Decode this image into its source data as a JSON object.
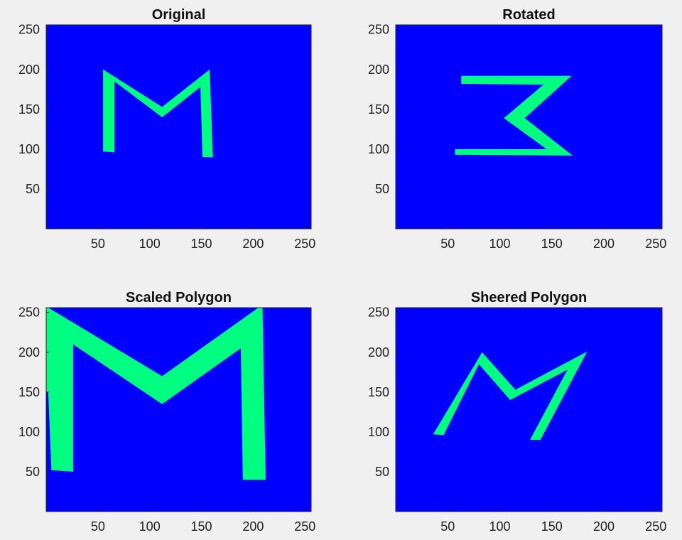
{
  "colors": {
    "figure_background": "#f0f0f0",
    "axes_background": "#0000ff",
    "shape_fill": "#00ff80",
    "axes_edge": "#262626"
  },
  "chart_data": [
    {
      "type": "area",
      "title": "Original",
      "xlim": [
        0,
        256
      ],
      "ylim": [
        0,
        256
      ],
      "xticks": [
        50,
        100,
        150,
        200,
        250
      ],
      "yticks": [
        50,
        100,
        150,
        200,
        250
      ],
      "grid": false,
      "polygon": [
        [
          55,
          200
        ],
        [
          112,
          153
        ],
        [
          158,
          200
        ],
        [
          161,
          90
        ],
        [
          151,
          90
        ],
        [
          149,
          178
        ],
        [
          112,
          140
        ],
        [
          66,
          185
        ],
        [
          66,
          96
        ],
        [
          55,
          97
        ]
      ]
    },
    {
      "type": "area",
      "title": "Rotated",
      "xlim": [
        0,
        256
      ],
      "ylim": [
        0,
        256
      ],
      "xticks": [
        50,
        100,
        150,
        200,
        250
      ],
      "yticks": [
        50,
        100,
        150,
        200,
        250
      ],
      "grid": false,
      "polygon": [
        [
          63,
          192
        ],
        [
          169,
          192
        ],
        [
          124,
          139
        ],
        [
          170,
          92
        ],
        [
          57,
          93
        ],
        [
          57,
          100
        ],
        [
          145,
          100
        ],
        [
          104,
          139
        ],
        [
          142,
          181
        ],
        [
          63,
          182
        ]
      ]
    },
    {
      "type": "area",
      "title": "Scaled Polygon",
      "xlim": [
        0,
        256
      ],
      "ylim": [
        0,
        256
      ],
      "xticks": [
        50,
        100,
        150,
        200,
        250
      ],
      "yticks": [
        50,
        100,
        150,
        200,
        250
      ],
      "grid": false,
      "polygon": [
        [
          0,
          256
        ],
        [
          2,
          256
        ],
        [
          112,
          170
        ],
        [
          205,
          256
        ],
        [
          209,
          256
        ],
        [
          212,
          40
        ],
        [
          190,
          40
        ],
        [
          188,
          205
        ],
        [
          112,
          135
        ],
        [
          26,
          210
        ],
        [
          26,
          50
        ],
        [
          5,
          52
        ],
        [
          2,
          150
        ],
        [
          0,
          150
        ]
      ]
    },
    {
      "type": "area",
      "title": "Sheered Polygon",
      "xlim": [
        0,
        256
      ],
      "ylim": [
        0,
        256
      ],
      "xticks": [
        50,
        100,
        150,
        200,
        250
      ],
      "yticks": [
        50,
        100,
        150,
        200,
        250
      ],
      "grid": false,
      "polygon": [
        [
          83,
          200
        ],
        [
          115,
          153
        ],
        [
          184,
          201
        ],
        [
          139,
          90
        ],
        [
          129,
          90
        ],
        [
          165,
          178
        ],
        [
          110,
          140
        ],
        [
          80,
          185
        ],
        [
          46,
          96
        ],
        [
          36,
          97
        ]
      ]
    }
  ]
}
